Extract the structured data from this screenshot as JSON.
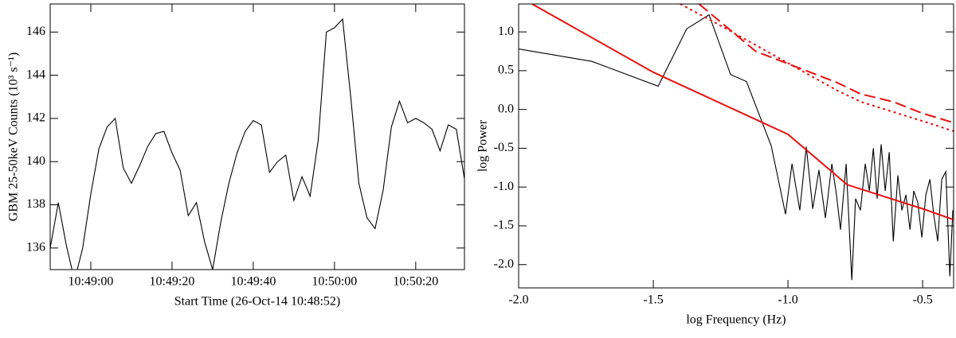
{
  "chart_data": [
    {
      "type": "line",
      "xlabel": "Start Time (26-Oct-14 10:48:52)",
      "ylabel": "GBM 25-50keV Counts (10³ s⁻¹)",
      "x": [
        "10:48:50",
        "10:48:52",
        "10:48:54",
        "10:48:56",
        "10:48:58",
        "10:49:00",
        "10:49:02",
        "10:49:04",
        "10:49:06",
        "10:49:08",
        "10:49:10",
        "10:49:12",
        "10:49:14",
        "10:49:16",
        "10:49:18",
        "10:49:20",
        "10:49:22",
        "10:49:24",
        "10:49:26",
        "10:49:28",
        "10:49:30",
        "10:49:32",
        "10:49:34",
        "10:49:36",
        "10:49:38",
        "10:49:40",
        "10:49:42",
        "10:49:44",
        "10:49:46",
        "10:49:48",
        "10:49:50",
        "10:49:52",
        "10:49:54",
        "10:49:56",
        "10:49:58",
        "10:50:00",
        "10:50:02",
        "10:50:04",
        "10:50:06",
        "10:50:08",
        "10:50:10",
        "10:50:12",
        "10:50:14",
        "10:50:16",
        "10:50:18",
        "10:50:20",
        "10:50:22",
        "10:50:24",
        "10:50:26",
        "10:50:28",
        "10:50:30",
        "10:50:32"
      ],
      "series": [
        {
          "color": "#000000",
          "values": [
            136.0,
            138.1,
            136.1,
            134.5,
            136.0,
            138.5,
            140.6,
            141.6,
            142.0,
            139.7,
            139.0,
            139.8,
            140.7,
            141.3,
            141.4,
            140.4,
            139.6,
            137.5,
            138.1,
            136.3,
            135.0,
            137.2,
            139.0,
            140.4,
            141.4,
            141.9,
            141.7,
            139.5,
            140.0,
            140.3,
            138.2,
            139.3,
            138.4,
            141.0,
            146.0,
            146.2,
            146.6,
            143.0,
            139.0,
            137.4,
            136.9,
            138.7,
            141.6,
            142.8,
            141.8,
            142.0,
            141.8,
            141.5,
            140.5,
            141.7,
            141.5,
            139.2
          ]
        }
      ],
      "xlim": [
        "10:48:50",
        "10:50:32"
      ],
      "xticks": [
        "10:49:00",
        "10:49:20",
        "10:49:40",
        "10:50:00",
        "10:50:20"
      ],
      "ylim": [
        135.0,
        147.3
      ],
      "yticks": [
        136,
        138,
        140,
        142,
        144,
        146
      ]
    },
    {
      "type": "line",
      "xlabel": "log Frequency (Hz)",
      "ylabel": "log Power",
      "series": [
        {
          "color": "#000000",
          "style": "solid",
          "x": [
            -2.0,
            -1.728,
            -1.482,
            -1.376,
            -1.293,
            -1.213,
            -1.154,
            -1.062,
            -1.009,
            -0.985,
            -0.956,
            -0.932,
            -0.908,
            -0.885,
            -0.861,
            -0.837,
            -0.82,
            -0.805,
            -0.784,
            -0.763,
            -0.749,
            -0.731,
            -0.713,
            -0.698,
            -0.683,
            -0.669,
            -0.654,
            -0.639,
            -0.624,
            -0.609,
            -0.592,
            -0.577,
            -0.562,
            -0.547,
            -0.533,
            -0.518,
            -0.503,
            -0.488,
            -0.473,
            -0.459,
            -0.444,
            -0.429,
            -0.414,
            -0.399,
            -0.388
          ],
          "values": [
            0.78,
            0.62,
            0.3,
            1.04,
            1.22,
            0.45,
            0.36,
            -0.47,
            -1.35,
            -0.7,
            -1.3,
            -0.48,
            -1.28,
            -0.78,
            -1.4,
            -0.7,
            -1.1,
            -1.55,
            -0.7,
            -2.2,
            -1.15,
            -1.3,
            -0.7,
            -1.05,
            -0.5,
            -1.15,
            -0.45,
            -1.05,
            -0.55,
            -1.7,
            -0.85,
            -1.3,
            -1.1,
            -1.55,
            -1.05,
            -1.2,
            -1.65,
            -1.1,
            -0.9,
            -1.35,
            -1.7,
            -0.9,
            -0.8,
            -2.15,
            -1.3
          ]
        },
        {
          "color": "#e8110f",
          "style": "solid",
          "x": [
            -1.95,
            -1.5,
            -1.0,
            -0.78,
            -0.5,
            -0.385
          ],
          "values": [
            1.36,
            0.48,
            -0.32,
            -0.97,
            -1.28,
            -1.42
          ]
        },
        {
          "color": "#e8110f",
          "style": "dashed",
          "x": [
            -1.33,
            -1.12,
            -0.82,
            -0.73,
            -0.61,
            -0.5,
            -0.385
          ],
          "values": [
            1.36,
            0.75,
            0.35,
            0.2,
            0.1,
            -0.05,
            -0.17
          ]
        },
        {
          "color": "#e8110f",
          "style": "dotted",
          "x": [
            -1.4,
            -1.26,
            -0.82,
            -0.73,
            -0.5,
            -0.385
          ],
          "values": [
            1.36,
            1.1,
            0.25,
            0.1,
            -0.15,
            -0.28
          ]
        }
      ],
      "xlim": [
        -2.0,
        -0.385
      ],
      "xticks": [
        {
          "value": -2,
          "label": "-2.0"
        },
        -1.5,
        {
          "value": -1,
          "label": "-1.0"
        },
        -0.5
      ],
      "ylim": [
        -2.3,
        1.36
      ],
      "yticks": [
        {
          "value": 1,
          "label": "1.0"
        },
        0.5,
        {
          "value": 0,
          "label": "0.0"
        },
        -0.5,
        {
          "value": -1,
          "label": "-1.0"
        },
        -1.5,
        {
          "value": -2,
          "label": "-2.0"
        }
      ]
    }
  ]
}
